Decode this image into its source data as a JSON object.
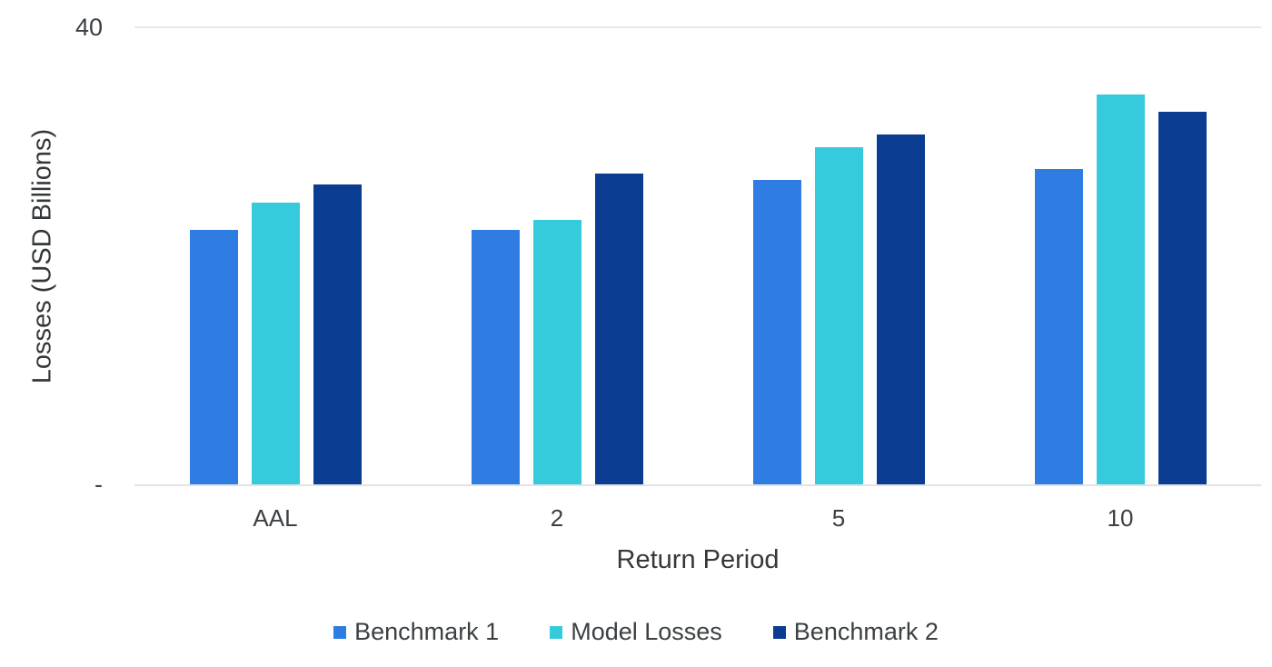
{
  "chart_data": {
    "type": "bar",
    "title": "",
    "categories": [
      "AAL",
      "2",
      "5",
      "10"
    ],
    "series": [
      {
        "name": "Benchmark 1",
        "color": "#2f7de2",
        "values": [
          22.3,
          22.3,
          26.7,
          27.6
        ]
      },
      {
        "name": "Model Losses",
        "color": "#36cbdc",
        "values": [
          24.7,
          23.2,
          29.5,
          34.1
        ]
      },
      {
        "name": "Benchmark 2",
        "color": "#0a3c91",
        "values": [
          26.3,
          27.2,
          30.6,
          32.6
        ]
      }
    ],
    "xlabel": "Return Period",
    "ylabel": "Losses (USD Billions)",
    "ylim": [
      0,
      40
    ],
    "y_tick_labels": [
      "40",
      "-"
    ],
    "grid": "single top gridline at 40, baseline axis at 0",
    "legend_position": "bottom",
    "colors": {
      "gridline": "#e7e8ea",
      "axis_line": "#e2e3e5",
      "tick_text": "#3c4043",
      "axis_title_text": "#35383b"
    }
  }
}
